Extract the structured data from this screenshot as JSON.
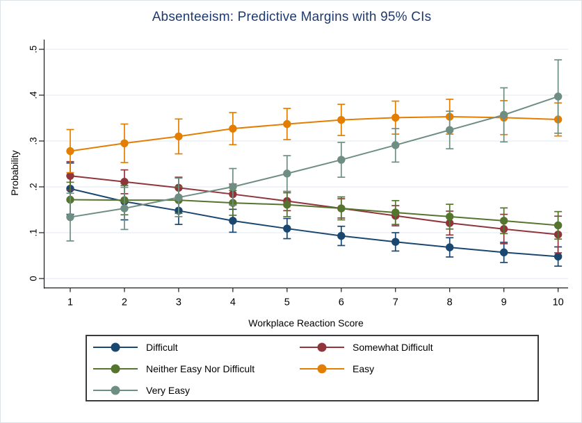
{
  "chart_data": {
    "type": "line",
    "title": "Absenteeism: Predictive Margins with 95% CIs",
    "xlabel": "Workplace Reaction Score",
    "ylabel": "Probability",
    "x": [
      1,
      2,
      3,
      4,
      5,
      6,
      7,
      8,
      9,
      10
    ],
    "xtick_labels": [
      "1",
      "2",
      "3",
      "4",
      "5",
      "6",
      "7",
      "8",
      "9",
      "10"
    ],
    "ylim": [
      0,
      0.5
    ],
    "yticks": [
      0,
      0.1,
      0.2,
      0.3,
      0.4,
      0.5
    ],
    "ytick_labels": [
      "0",
      ".1",
      ".2",
      ".3",
      ".4",
      ".5"
    ],
    "grid": true,
    "error_bars": "95% CI",
    "legend_position": "bottom",
    "legend_columns": 2,
    "series": [
      {
        "name": "Difficult",
        "color": "#1a476f",
        "values": [
          0.196,
          0.168,
          0.148,
          0.126,
          0.109,
          0.093,
          0.08,
          0.068,
          0.057,
          0.048
        ],
        "ci_low": [
          0.14,
          0.128,
          0.118,
          0.101,
          0.087,
          0.072,
          0.06,
          0.047,
          0.035,
          0.027
        ],
        "ci_high": [
          0.252,
          0.208,
          0.178,
          0.151,
          0.131,
          0.114,
          0.1,
          0.089,
          0.079,
          0.069
        ]
      },
      {
        "name": "Somewhat Difficult",
        "color": "#90353b",
        "values": [
          0.224,
          0.211,
          0.198,
          0.184,
          0.169,
          0.153,
          0.137,
          0.121,
          0.108,
          0.096
        ],
        "ci_low": [
          0.193,
          0.185,
          0.175,
          0.162,
          0.148,
          0.132,
          0.115,
          0.095,
          0.076,
          0.056
        ],
        "ci_high": [
          0.255,
          0.237,
          0.221,
          0.206,
          0.19,
          0.174,
          0.159,
          0.147,
          0.14,
          0.136
        ]
      },
      {
        "name": "Neither Easy Nor Difficult",
        "color": "#55752f",
        "values": [
          0.172,
          0.171,
          0.171,
          0.165,
          0.161,
          0.153,
          0.144,
          0.135,
          0.126,
          0.116
        ],
        "ci_low": [
          0.134,
          0.139,
          0.142,
          0.138,
          0.135,
          0.128,
          0.118,
          0.108,
          0.098,
          0.086
        ],
        "ci_high": [
          0.21,
          0.203,
          0.2,
          0.192,
          0.187,
          0.178,
          0.17,
          0.162,
          0.154,
          0.146
        ]
      },
      {
        "name": "Easy",
        "color": "#e37e00",
        "values": [
          0.278,
          0.295,
          0.31,
          0.327,
          0.337,
          0.346,
          0.351,
          0.353,
          0.351,
          0.347
        ],
        "ci_low": [
          0.231,
          0.253,
          0.272,
          0.292,
          0.303,
          0.312,
          0.315,
          0.315,
          0.314,
          0.311
        ],
        "ci_high": [
          0.325,
          0.337,
          0.348,
          0.362,
          0.371,
          0.38,
          0.387,
          0.391,
          0.388,
          0.383
        ]
      },
      {
        "name": "Very Easy",
        "color": "#6e8e84",
        "values": [
          0.134,
          0.153,
          0.177,
          0.2,
          0.229,
          0.259,
          0.291,
          0.324,
          0.357,
          0.397
        ],
        "ci_low": [
          0.082,
          0.107,
          0.135,
          0.16,
          0.19,
          0.221,
          0.254,
          0.283,
          0.298,
          0.317
        ],
        "ci_high": [
          0.186,
          0.199,
          0.219,
          0.24,
          0.268,
          0.297,
          0.327,
          0.365,
          0.416,
          0.477
        ]
      }
    ],
    "style": {
      "title_color": "#1e3a6d",
      "axis_color": "#1a1a1a",
      "grid_color": "#e6edf5",
      "background": "#ffffff",
      "legend_border": "#3a3a3a"
    }
  }
}
